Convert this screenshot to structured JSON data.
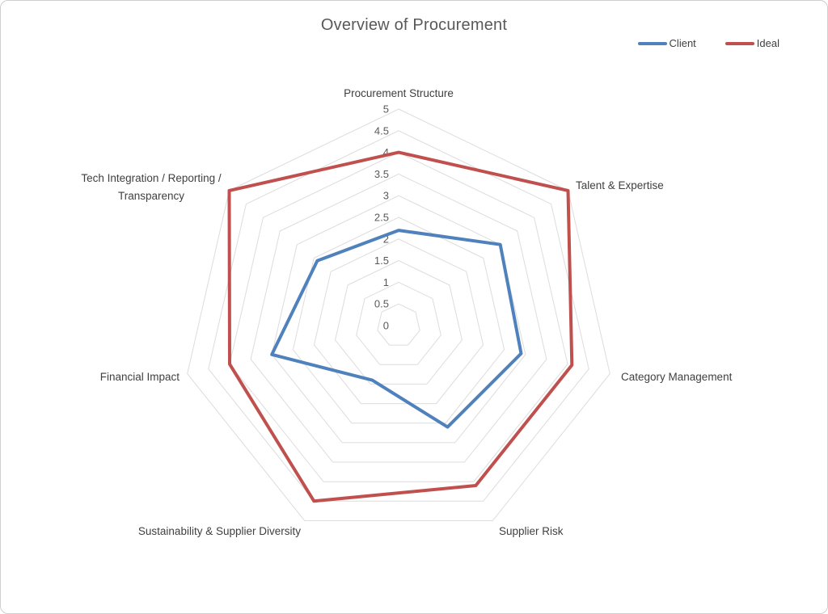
{
  "page": {
    "title": "Overview of Procurement"
  },
  "legend": [
    {
      "label": "Client",
      "color": "#4F81BD"
    },
    {
      "label": "Ideal",
      "color": "#C0504D"
    }
  ],
  "chart_data": {
    "type": "radar",
    "title": "Overview of Procurement",
    "categories": [
      "Procurement Structure",
      "Talent & Expertise",
      "Category Management",
      "Supplier Risk",
      "Sustainability & Supplier Diversity",
      "Financial Impact",
      "Tech Integration / Reporting /\nTransparency"
    ],
    "series": [
      {
        "name": "Client",
        "color": "#4F81BD",
        "values": [
          2.2,
          3,
          2.9,
          2.6,
          1.4,
          3,
          2.4
        ]
      },
      {
        "name": "Ideal",
        "color": "#C0504D",
        "values": [
          4,
          5,
          4.1,
          4.1,
          4.5,
          4,
          5
        ]
      }
    ],
    "axis": {
      "min": 0,
      "max": 5,
      "step": 0.5,
      "tick_labels": [
        "0",
        "0.5",
        "1",
        "1.5",
        "2",
        "2.5",
        "3",
        "3.5",
        "4",
        "4.5",
        "5"
      ]
    },
    "grid": true,
    "legend_position": "top-right",
    "colors": {
      "grid": "#dcdcdc",
      "tick_text": "#595959",
      "label_text": "#404040",
      "title_text": "#595959",
      "frame_border": "#cfcfcf"
    }
  }
}
